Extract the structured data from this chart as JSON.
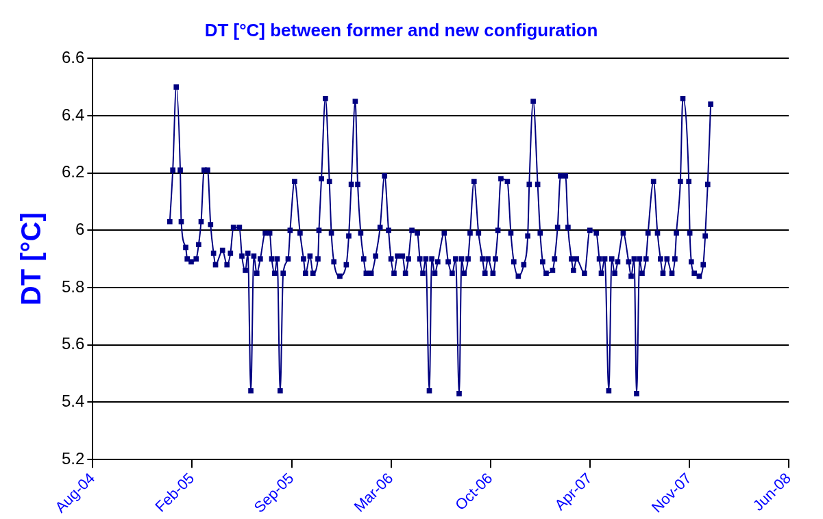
{
  "chart_data": {
    "type": "line",
    "title": "DT [°C] between former and new configuration",
    "ylabel": "DT [°C]",
    "x": [
      "2005-01-03",
      "2005-01-09",
      "2005-01-16",
      "2005-01-24",
      "2005-01-26",
      "2005-02-04",
      "2005-02-07",
      "2005-02-15",
      "2005-02-25",
      "2005-03-02",
      "2005-03-07",
      "2005-03-13",
      "2005-03-20",
      "2005-03-26",
      "2005-04-01",
      "2005-04-05",
      "2005-04-19",
      "2005-04-28",
      "2005-05-05",
      "2005-05-11",
      "2005-05-23",
      "2005-05-28",
      "2005-06-04",
      "2005-06-09",
      "2005-06-15",
      "2005-06-21",
      "2005-06-27",
      "2005-07-04",
      "2005-07-14",
      "2005-07-23",
      "2005-07-27",
      "2005-08-02",
      "2005-08-07",
      "2005-08-13",
      "2005-08-19",
      "2005-08-29",
      "2005-09-02",
      "2005-09-11",
      "2005-09-22",
      "2005-09-29",
      "2005-10-03",
      "2005-10-12",
      "2005-10-18",
      "2005-10-28",
      "2005-10-30",
      "2005-11-04",
      "2005-11-12",
      "2005-11-20",
      "2005-11-24",
      "2005-11-29",
      "2005-12-11",
      "2005-12-24",
      "2005-12-29",
      "2006-01-03",
      "2006-01-11",
      "2006-01-16",
      "2006-01-22",
      "2006-01-28",
      "2006-02-02",
      "2006-02-12",
      "2006-02-21",
      "2006-03-02",
      "2006-03-11",
      "2006-03-19",
      "2006-03-24",
      "2006-03-30",
      "2006-04-06",
      "2006-04-16",
      "2006-04-22",
      "2006-04-28",
      "2006-05-05",
      "2006-05-16",
      "2006-05-21",
      "2006-05-27",
      "2006-06-02",
      "2006-06-09",
      "2006-06-14",
      "2006-06-20",
      "2006-06-26",
      "2006-07-09",
      "2006-07-17",
      "2006-07-25",
      "2006-08-01",
      "2006-08-08",
      "2006-08-13",
      "2006-08-18",
      "2006-08-26",
      "2006-08-30",
      "2006-09-07",
      "2006-09-16",
      "2006-09-24",
      "2006-09-29",
      "2006-10-05",
      "2006-10-15",
      "2006-10-20",
      "2006-10-25",
      "2006-10-31",
      "2006-11-13",
      "2006-11-20",
      "2006-11-26",
      "2006-12-05",
      "2006-12-16",
      "2006-12-24",
      "2006-12-27",
      "2007-01-04",
      "2007-01-13",
      "2007-01-18",
      "2007-01-23",
      "2007-01-30",
      "2007-02-12",
      "2007-02-16",
      "2007-02-22",
      "2007-02-28",
      "2007-03-10",
      "2007-03-15",
      "2007-03-22",
      "2007-03-26",
      "2007-04-01",
      "2007-04-17",
      "2007-04-28",
      "2007-05-11",
      "2007-05-17",
      "2007-05-21",
      "2007-05-28",
      "2007-06-05",
      "2007-06-11",
      "2007-06-17",
      "2007-06-23",
      "2007-07-04",
      "2007-07-15",
      "2007-07-20",
      "2007-07-26",
      "2007-07-31",
      "2007-08-06",
      "2007-08-11",
      "2007-08-19",
      "2007-08-23",
      "2007-09-03",
      "2007-09-11",
      "2007-09-17",
      "2007-09-22",
      "2007-09-30",
      "2007-10-10",
      "2007-10-16",
      "2007-10-19",
      "2007-10-27",
      "2007-11-01",
      "2007-11-13",
      "2007-11-15",
      "2007-11-18",
      "2007-11-24",
      "2007-12-04",
      "2007-12-12",
      "2007-12-16",
      "2007-12-21",
      "2007-12-27"
    ],
    "series": [
      {
        "color": "#000080",
        "values": [
          6.03,
          6.21,
          6.5,
          6.21,
          6.03,
          5.94,
          5.9,
          5.89,
          5.9,
          5.95,
          6.03,
          6.21,
          6.21,
          6.02,
          5.92,
          5.88,
          5.93,
          5.88,
          5.92,
          6.01,
          6.01,
          5.91,
          5.86,
          5.92,
          5.44,
          5.91,
          5.85,
          5.9,
          5.99,
          5.99,
          5.9,
          5.85,
          5.9,
          5.44,
          5.85,
          5.9,
          6.0,
          6.17,
          5.99,
          5.9,
          5.85,
          5.91,
          5.85,
          5.9,
          6.0,
          6.18,
          6.46,
          6.17,
          5.99,
          5.89,
          5.84,
          5.88,
          5.98,
          6.16,
          6.45,
          6.16,
          5.99,
          5.9,
          5.85,
          5.85,
          5.91,
          6.01,
          6.19,
          6.0,
          5.9,
          5.85,
          5.91,
          5.91,
          5.85,
          5.9,
          6.0,
          5.99,
          5.9,
          5.85,
          5.9,
          5.44,
          5.9,
          5.85,
          5.89,
          5.99,
          5.89,
          5.85,
          5.9,
          5.43,
          5.9,
          5.85,
          5.9,
          5.99,
          6.17,
          5.99,
          5.9,
          5.85,
          5.9,
          5.85,
          5.9,
          6.0,
          6.18,
          6.17,
          5.99,
          5.89,
          5.84,
          5.88,
          5.98,
          6.16,
          6.45,
          6.16,
          5.99,
          5.89,
          5.85,
          5.86,
          5.9,
          6.01,
          6.19,
          6.19,
          6.01,
          5.9,
          5.86,
          5.9,
          5.85,
          6.0,
          5.99,
          5.9,
          5.85,
          5.9,
          5.44,
          5.9,
          5.85,
          5.89,
          5.99,
          5.89,
          5.84,
          5.9,
          5.43,
          5.9,
          5.85,
          5.9,
          5.99,
          6.17,
          5.99,
          5.9,
          5.85,
          5.9,
          5.85,
          5.9,
          5.99,
          6.17,
          6.46,
          6.17,
          5.99,
          5.89,
          5.85,
          5.84,
          5.88,
          5.98,
          6.16,
          6.44
        ]
      }
    ],
    "xlim": [
      "2004-08-01",
      "2008-06-01"
    ],
    "xticks": [
      {
        "value": "2004-08-01",
        "label": "Aug-04"
      },
      {
        "value": "2005-02-17",
        "label": "Feb-05"
      },
      {
        "value": "2005-09-05",
        "label": "Sep-05"
      },
      {
        "value": "2006-03-24",
        "label": "Mar-06"
      },
      {
        "value": "2006-10-10",
        "label": "Oct-06"
      },
      {
        "value": "2007-04-28",
        "label": "Apr-07"
      },
      {
        "value": "2007-11-14",
        "label": "Nov-07"
      },
      {
        "value": "2008-06-01",
        "label": "Jun-08"
      }
    ],
    "ylim": [
      5.2,
      6.6
    ],
    "yticks": [
      5.2,
      5.4,
      5.6,
      5.8,
      6,
      6.2,
      6.4,
      6.6
    ],
    "grid": "y",
    "marker": "square",
    "legend": false
  }
}
